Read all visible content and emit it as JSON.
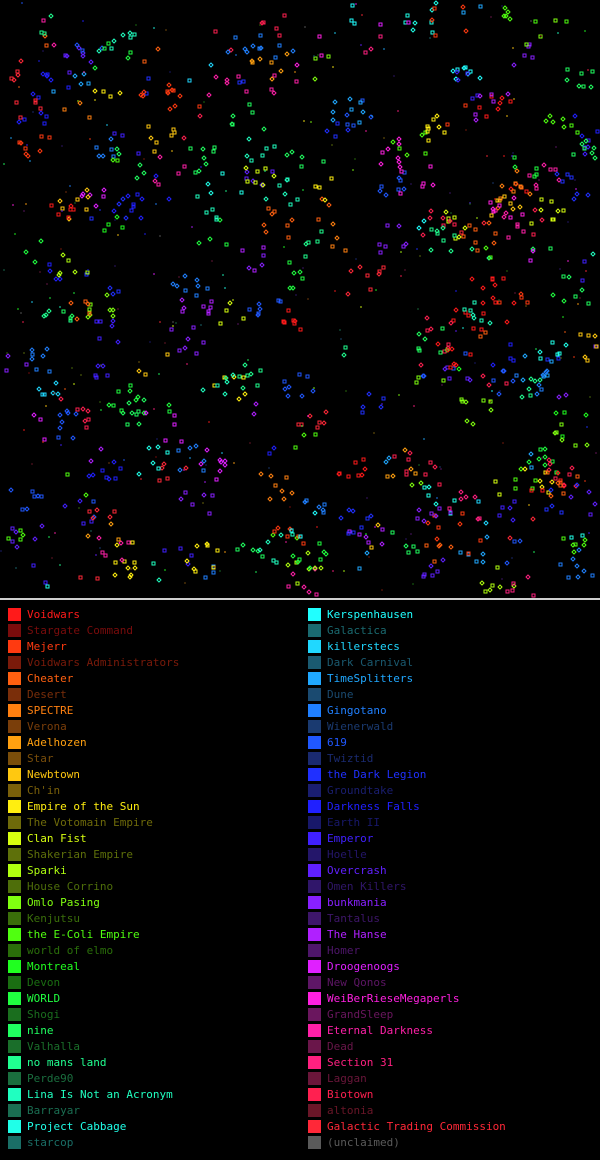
{
  "legend": {
    "left": [
      {
        "name": "Voidwars",
        "color": "#ff1a1a"
      },
      {
        "name": "Stargate Command",
        "color": "#7a0c0c"
      },
      {
        "name": "Mejerr",
        "color": "#ff3a10"
      },
      {
        "name": "Voidwars Administrators",
        "color": "#7a1a0a"
      },
      {
        "name": "Cheater",
        "color": "#ff6010"
      },
      {
        "name": "Desert",
        "color": "#7a2e0a"
      },
      {
        "name": "SPECTRE",
        "color": "#ff8010"
      },
      {
        "name": "Verona",
        "color": "#7a3e0a"
      },
      {
        "name": "Adelhozen",
        "color": "#ffa010"
      },
      {
        "name": "Star",
        "color": "#7a4e0a"
      },
      {
        "name": "Newbtown",
        "color": "#ffc810"
      },
      {
        "name": "Ch'in",
        "color": "#7a600a"
      },
      {
        "name": "Empire of the Sun",
        "color": "#ffee10"
      },
      {
        "name": "The Votomain Empire",
        "color": "#6e6a0a"
      },
      {
        "name": "Clan Fist",
        "color": "#d8ff10"
      },
      {
        "name": "Shakerian Empire",
        "color": "#5e700a"
      },
      {
        "name": "Sparki",
        "color": "#b0ff10"
      },
      {
        "name": "House Corrino",
        "color": "#4e6e0a"
      },
      {
        "name": "Omlo Pasing",
        "color": "#80ff10"
      },
      {
        "name": "Kenjutsu",
        "color": "#3a6e0a"
      },
      {
        "name": "the E-Coli Empire",
        "color": "#50ff10"
      },
      {
        "name": "world of elmo",
        "color": "#2a6e0a"
      },
      {
        "name": "Montreal",
        "color": "#20ff20"
      },
      {
        "name": "Devon",
        "color": "#1a6e12"
      },
      {
        "name": "WORLD",
        "color": "#20ff40"
      },
      {
        "name": "Shogi",
        "color": "#1a6e1e"
      },
      {
        "name": "nine",
        "color": "#20ff60"
      },
      {
        "name": "Valhalla",
        "color": "#1a6e2a"
      },
      {
        "name": "no mans land",
        "color": "#20ff90"
      },
      {
        "name": "Perde90",
        "color": "#1a6e3e"
      },
      {
        "name": "Lina Is Not an Acronym",
        "color": "#20ffc0"
      },
      {
        "name": "Barrayar",
        "color": "#1a6e52"
      },
      {
        "name": "Project Cabbage",
        "color": "#20ffe8"
      },
      {
        "name": "starcop",
        "color": "#1a6e66"
      }
    ],
    "right": [
      {
        "name": "Kerspenhausen",
        "color": "#20ffff"
      },
      {
        "name": "Galactica",
        "color": "#1a6a70"
      },
      {
        "name": "killerstecs",
        "color": "#20d8ff"
      },
      {
        "name": "Dark Carnival",
        "color": "#1a5a70"
      },
      {
        "name": "TimeSplitters",
        "color": "#20a8ff"
      },
      {
        "name": "Dune",
        "color": "#1a4a70"
      },
      {
        "name": "Gingotano",
        "color": "#2080ff"
      },
      {
        "name": "Wienerwald",
        "color": "#1a3a70"
      },
      {
        "name": "619",
        "color": "#2058ff"
      },
      {
        "name": "Twiztid",
        "color": "#1a2a70"
      },
      {
        "name": "the Dark Legion",
        "color": "#2030ff"
      },
      {
        "name": "Groundtake",
        "color": "#1a1e70"
      },
      {
        "name": "Darkness Falls",
        "color": "#2020ff"
      },
      {
        "name": "Earth II",
        "color": "#18186a"
      },
      {
        "name": "Emperor",
        "color": "#4020ff"
      },
      {
        "name": "Hoelle",
        "color": "#24166a"
      },
      {
        "name": "Overcrash",
        "color": "#6020ff"
      },
      {
        "name": "Omen Killers",
        "color": "#30166a"
      },
      {
        "name": "bunkmania",
        "color": "#8820ff"
      },
      {
        "name": "Tantalus",
        "color": "#3e166a"
      },
      {
        "name": "The Hanse",
        "color": "#b020ff"
      },
      {
        "name": "Homer",
        "color": "#4e166a"
      },
      {
        "name": "Droogenoogs",
        "color": "#e020ff"
      },
      {
        "name": "New Qonos",
        "color": "#5e1666"
      },
      {
        "name": "WeiBerRieseMegaperls",
        "color": "#ff20e0"
      },
      {
        "name": "GrandSleep",
        "color": "#6a165e"
      },
      {
        "name": "Eternal Darkness",
        "color": "#ff20a8"
      },
      {
        "name": "Dead",
        "color": "#6a164a"
      },
      {
        "name": "Section 31",
        "color": "#ff2080"
      },
      {
        "name": "Laggan",
        "color": "#6a163a"
      },
      {
        "name": "Biotown",
        "color": "#ff2050"
      },
      {
        "name": "altonia",
        "color": "#6a1628"
      },
      {
        "name": "Galactic Trading Commission",
        "color": "#ff2838"
      },
      {
        "name": "(unclaimed)",
        "color": "#5a5a5a"
      }
    ]
  }
}
